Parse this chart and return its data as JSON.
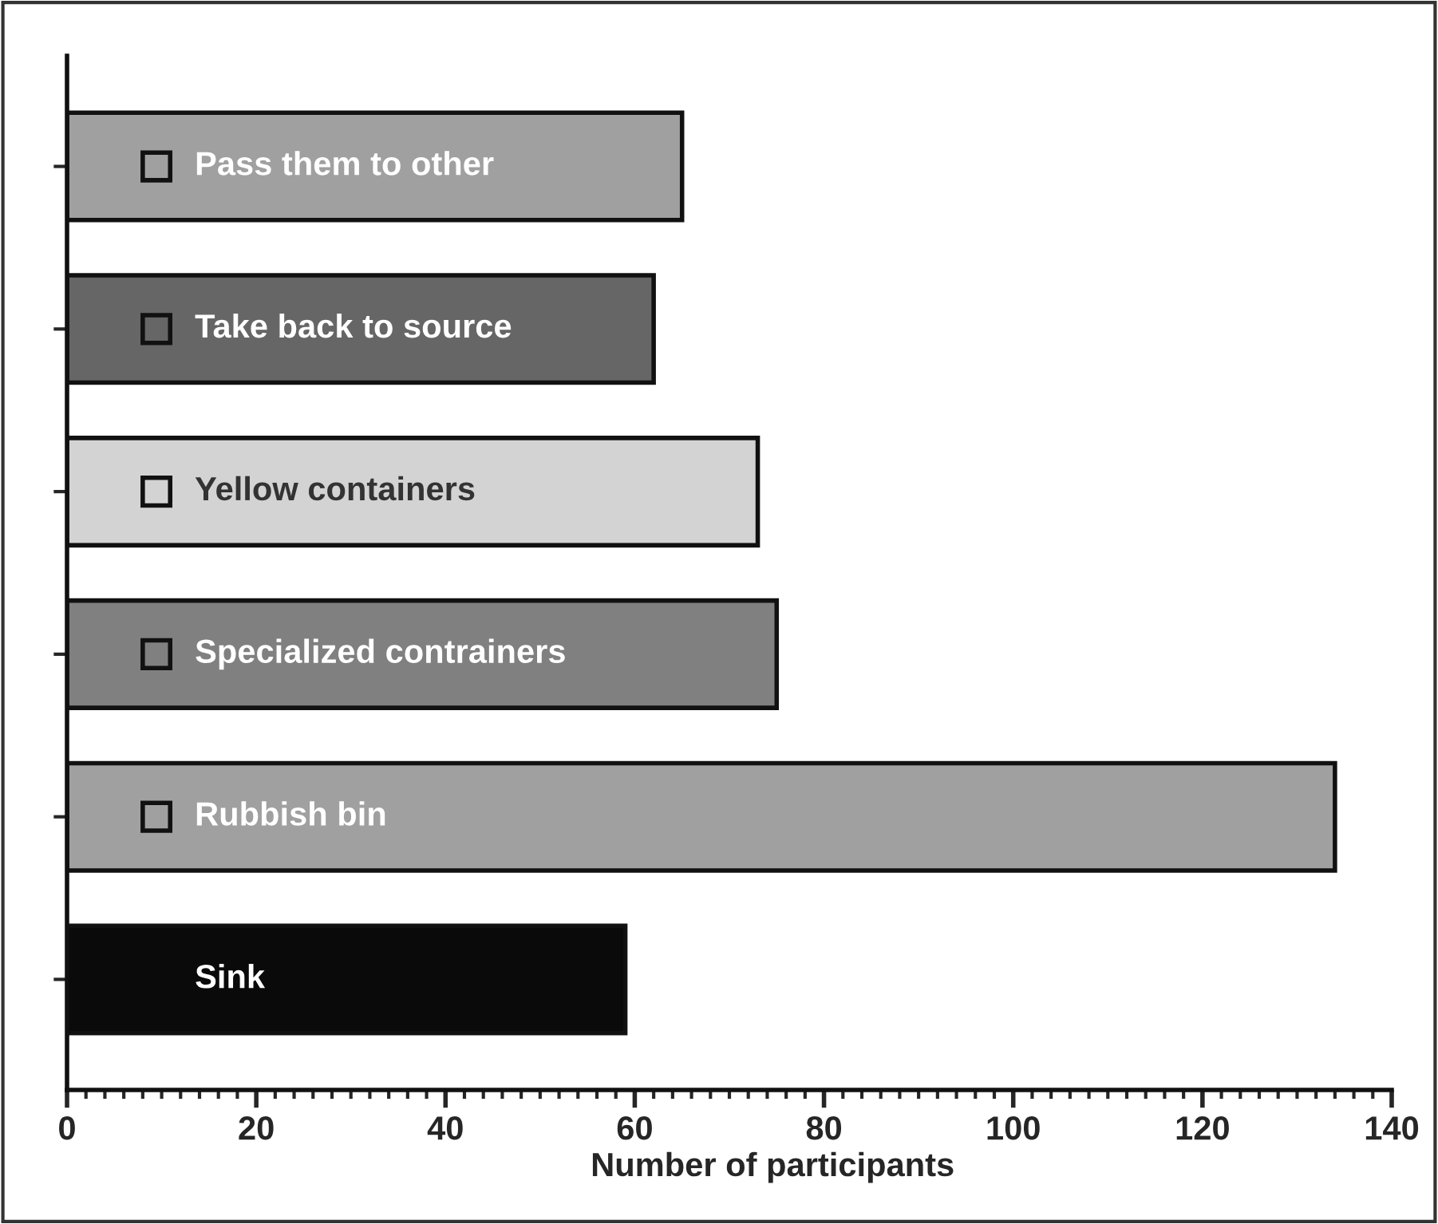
{
  "chart_data": {
    "type": "bar",
    "orientation": "horizontal",
    "xlabel": "Number of participants",
    "categories": [
      "Pass them to other",
      "Take back to source",
      "Yellow containers",
      "Specialized contrainers",
      "Rubbish bin",
      "Sink"
    ],
    "values": [
      65,
      62,
      73,
      75,
      134,
      59
    ],
    "colors": [
      "#a0a0a0",
      "#666666",
      "#d3d3d3",
      "#808080",
      "#a0a0a0",
      "#0a0a0a"
    ],
    "xlim": [
      0,
      140
    ],
    "xticks": [
      0,
      20,
      40,
      60,
      80,
      100,
      120,
      140
    ],
    "grid": false,
    "legend": false
  }
}
